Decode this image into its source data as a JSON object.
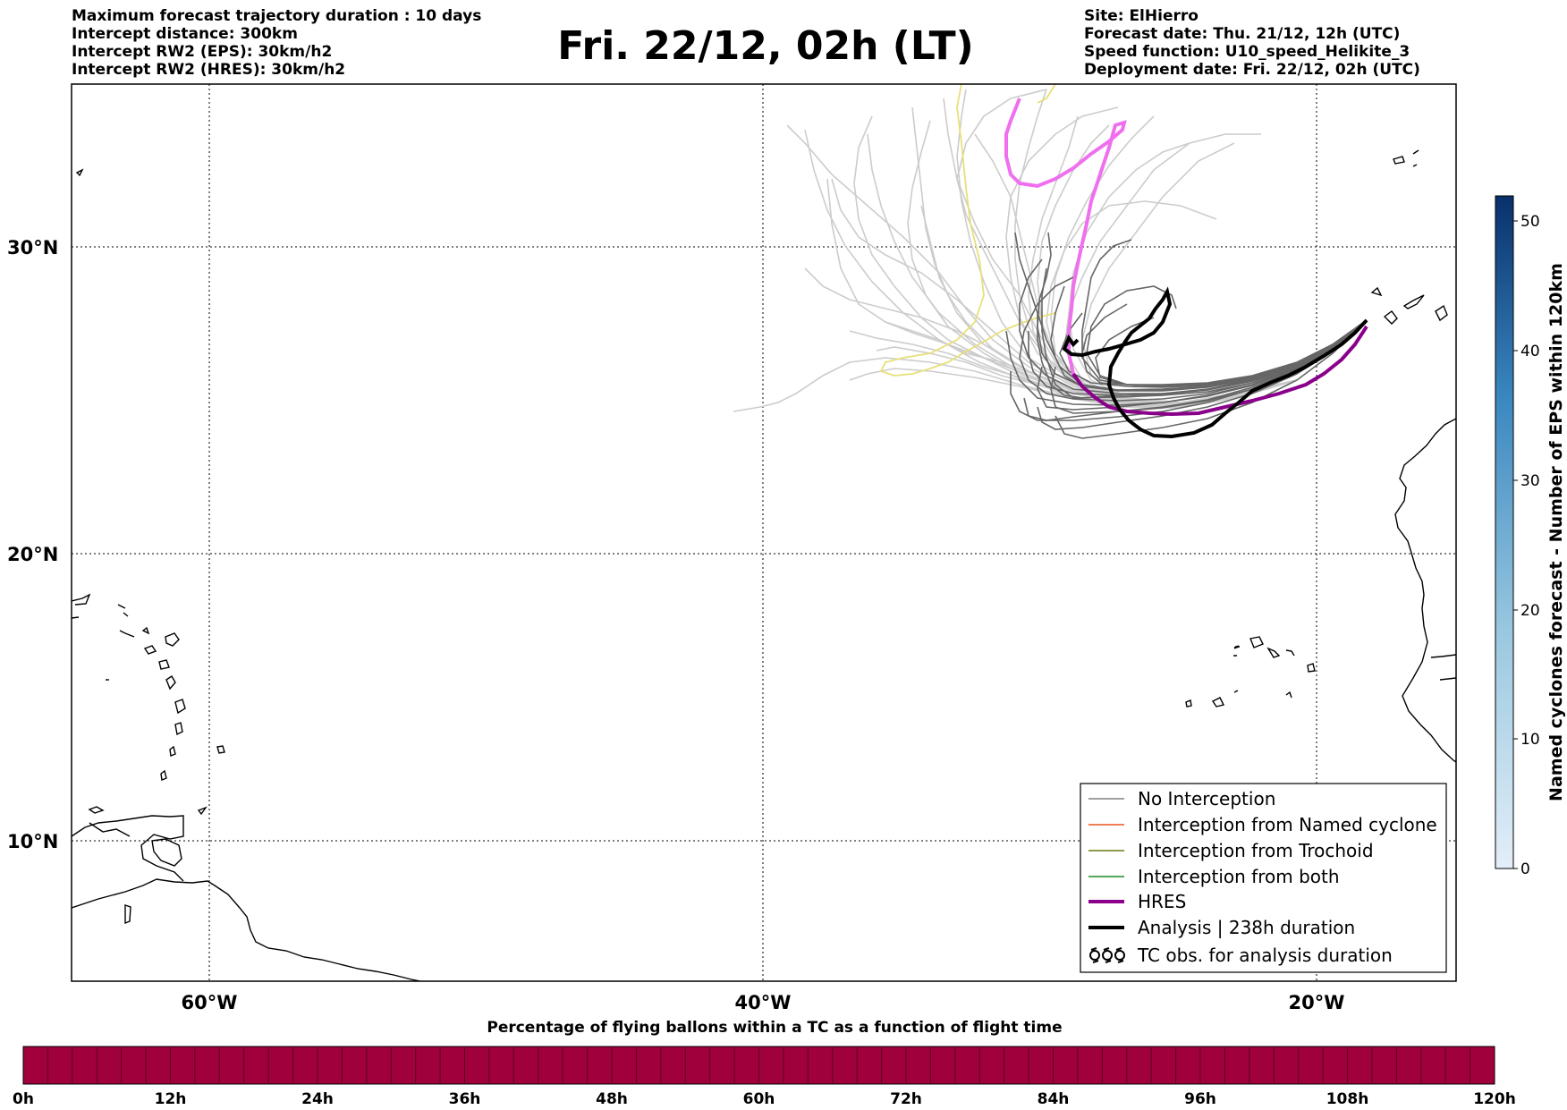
{
  "header": {
    "left_lines": [
      "Maximum forecast trajectory duration : 10 days",
      "Intercept distance: 300km",
      "Intercept RW2 (EPS):  30km/h2",
      "Intercept RW2 (HRES): 30km/h2"
    ],
    "title": "Fri. 22/12, 02h (LT)",
    "right_lines": [
      "Site: ElHierro",
      "Forecast date: Thu. 21/12, 12h (UTC)",
      "Speed function: U10_speed_Helikite_3",
      "Deployment date: Fri. 22/12, 02h (UTC)"
    ]
  },
  "map": {
    "lat_labels": [
      "30°N",
      "20°N",
      "10°N"
    ],
    "lon_labels": [
      "60°W",
      "40°W",
      "20°W"
    ]
  },
  "legend": {
    "items": [
      {
        "label": "No Interception",
        "color": "#808080",
        "style": "thin"
      },
      {
        "label": "Interception from Named cyclone",
        "color": "#e8541a",
        "style": "thin"
      },
      {
        "label": "Interception from Trochoid",
        "color": "#6b7a12",
        "style": "thin"
      },
      {
        "label": "Interception from both",
        "color": "#1e8a1e",
        "style": "thin"
      },
      {
        "label": "HRES",
        "color": "#8b008b",
        "style": "thick"
      },
      {
        "label": "Analysis | 238h duration",
        "color": "#000000",
        "style": "thick"
      },
      {
        "label": "TC obs. for analysis duration",
        "color": "#000000",
        "style": "tc"
      }
    ]
  },
  "colorbar": {
    "title": "Named cyclones forecast - Number of EPS within 120km",
    "ticks": [
      "0",
      "10",
      "20",
      "30",
      "40",
      "50"
    ],
    "color_low": "#e3eef9",
    "color_high": "#08306b"
  },
  "timebar": {
    "title": "Percentage of flying ballons within a TC as a function of flight time",
    "ticks": [
      "0h",
      "12h",
      "24h",
      "36h",
      "48h",
      "60h",
      "72h",
      "84h",
      "96h",
      "108h",
      "120h"
    ],
    "color": "#a0003c"
  },
  "colors": {
    "eps_light": "#cccccc",
    "eps_dark": "#666666",
    "hres_magenta": "#ef6fef",
    "hres_purple": "#8b008b",
    "trochoid_yellow": "#e8e07a",
    "analysis": "#000000"
  }
}
